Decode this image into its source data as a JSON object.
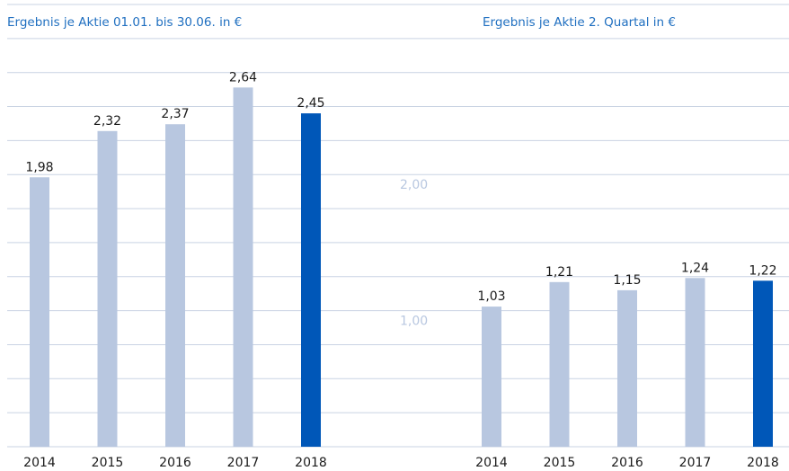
{
  "chart_data": [
    {
      "type": "bar",
      "title": "Ergebnis je Aktie 01.01. bis 30.06. in €",
      "categories": [
        "2014",
        "2015",
        "2016",
        "2017",
        "2018"
      ],
      "values": [
        1.98,
        2.32,
        2.37,
        2.64,
        2.45
      ],
      "value_labels": [
        "1,98",
        "2,32",
        "2,37",
        "2,64",
        "2,45"
      ],
      "colors": [
        "#b8c7e0",
        "#b8c7e0",
        "#b8c7e0",
        "#b8c7e0",
        "#0057b8"
      ],
      "ylim": [
        0,
        3.25
      ],
      "ygrid": [
        0,
        0.25,
        0.5,
        0.75,
        1,
        1.25,
        1.5,
        1.75,
        2,
        2.25,
        2.5,
        2.75,
        3,
        3.25
      ],
      "grid": true
    },
    {
      "type": "bar",
      "title": "Ergebnis je Aktie 2. Quartal in €",
      "categories": [
        "2014",
        "2015",
        "2016",
        "2017",
        "2018"
      ],
      "values": [
        1.03,
        1.21,
        1.15,
        1.24,
        1.22
      ],
      "value_labels": [
        "1,03",
        "1,21",
        "1,15",
        "1,24",
        "1,22"
      ],
      "colors": [
        "#b8c7e0",
        "#b8c7e0",
        "#b8c7e0",
        "#b8c7e0",
        "#0057b8"
      ],
      "ylim": [
        0,
        3.25
      ],
      "yticks": [
        {
          "value": 1,
          "label": "1,00"
        },
        {
          "value": 2,
          "label": "2,00"
        }
      ]
    }
  ]
}
